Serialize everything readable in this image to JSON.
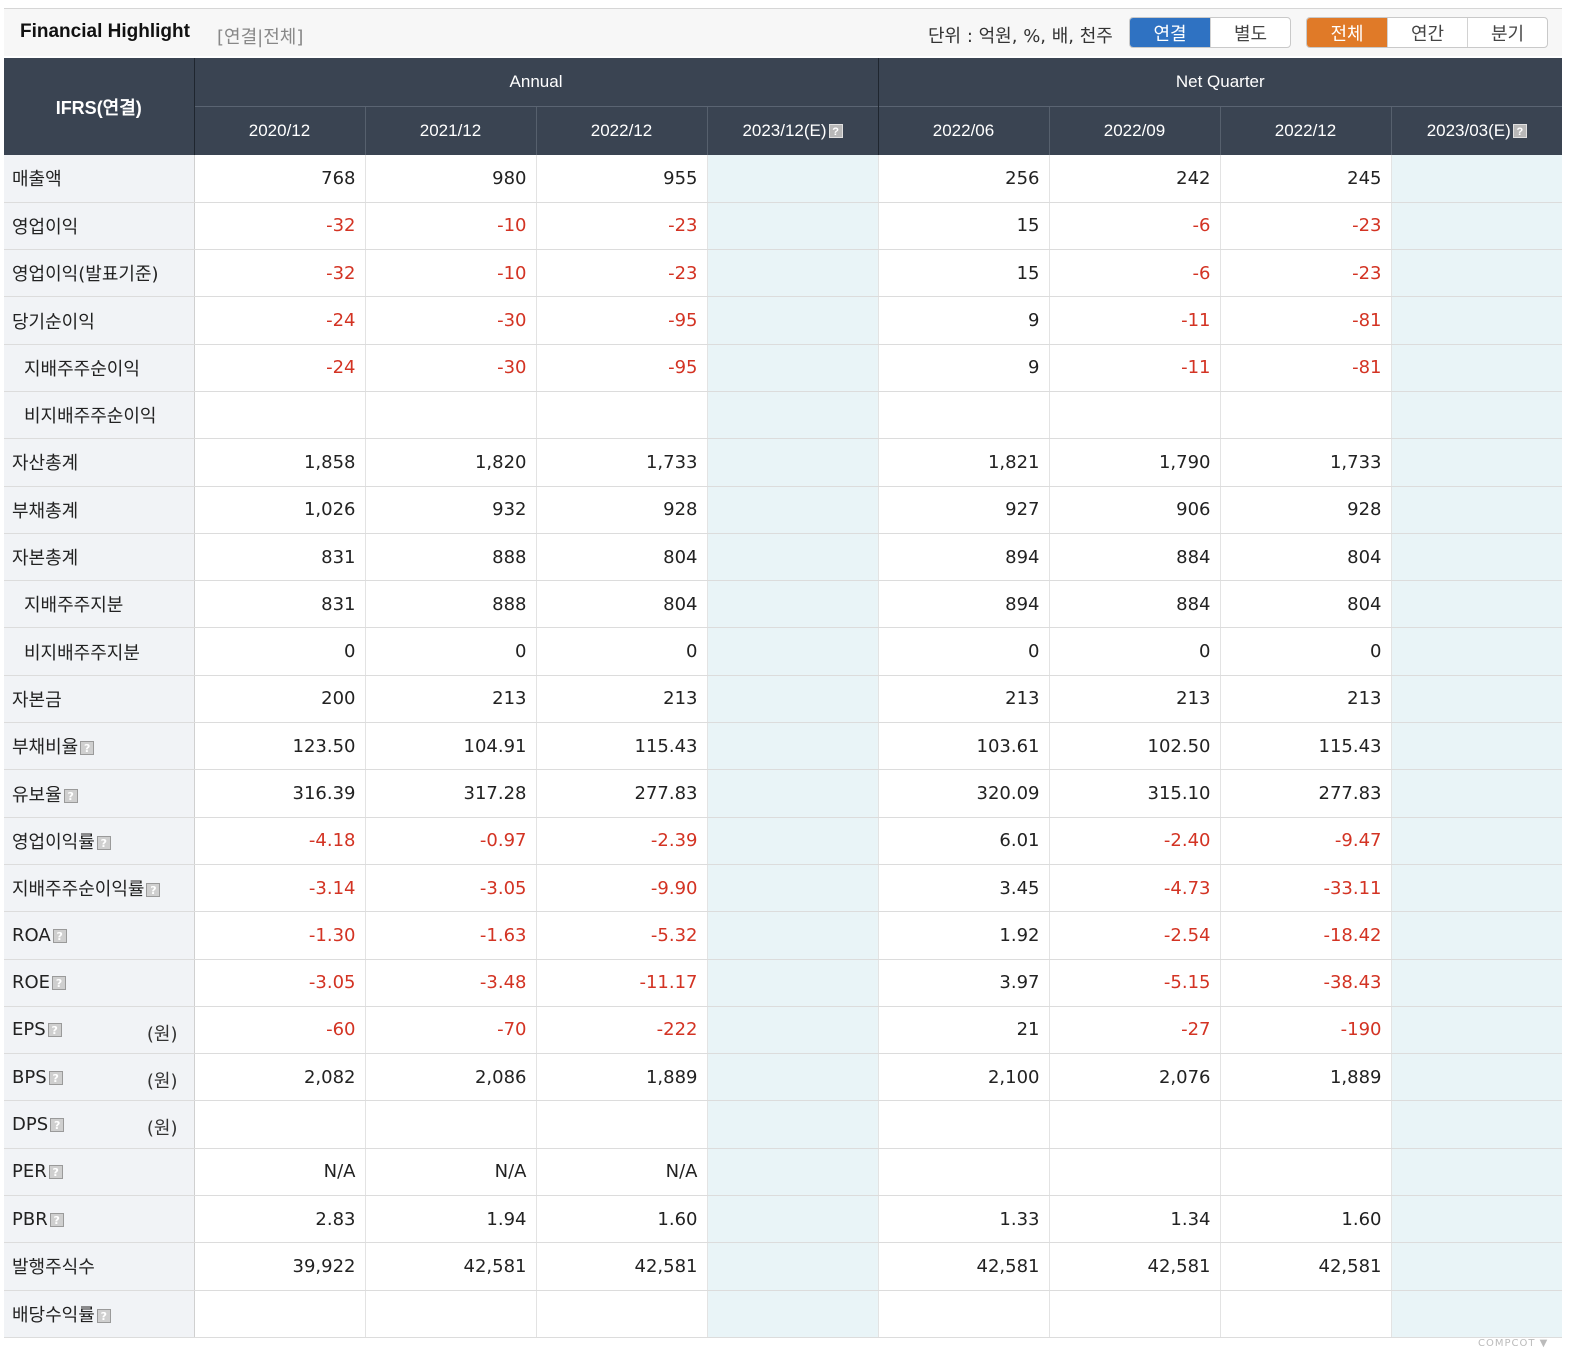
{
  "header": {
    "title": "Financial Highlight",
    "subtitle": "[연결|전체]",
    "unit_label": "단위 : 억원, %, 배, 천주",
    "scope_toggle": [
      "연결",
      "별도"
    ],
    "scope_selected": 0,
    "period_toggle": [
      "전체",
      "연간",
      "분기"
    ],
    "period_selected": 0
  },
  "colors": {
    "header_bg": "#3a4452",
    "negative": "#d33323",
    "scope_active": "#2f72c2",
    "period_active": "#e07a28",
    "estimate_bg": "#e9f4f7"
  },
  "table": {
    "stub_header": "IFRS(연결)",
    "groups": [
      "Annual",
      "Net Quarter"
    ],
    "columns": [
      "2020/12",
      "2021/12",
      "2022/12",
      "2023/12(E)",
      "2022/06",
      "2022/09",
      "2022/12",
      "2023/03(E)"
    ],
    "rows": [
      {
        "label": "매출액",
        "values": [
          "768",
          "980",
          "955",
          "",
          "256",
          "242",
          "245",
          ""
        ]
      },
      {
        "label": "영업이익",
        "values": [
          "-32",
          "-10",
          "-23",
          "",
          "15",
          "-6",
          "-23",
          ""
        ]
      },
      {
        "label": "영업이익(발표기준)",
        "values": [
          "-32",
          "-10",
          "-23",
          "",
          "15",
          "-6",
          "-23",
          ""
        ]
      },
      {
        "label": "당기순이익",
        "values": [
          "-24",
          "-30",
          "-95",
          "",
          "9",
          "-11",
          "-81",
          ""
        ]
      },
      {
        "label": "지배주주순이익",
        "indent": true,
        "values": [
          "-24",
          "-30",
          "-95",
          "",
          "9",
          "-11",
          "-81",
          ""
        ]
      },
      {
        "label": "비지배주주순이익",
        "indent": true,
        "values": [
          "",
          "",
          "",
          "",
          "",
          "",
          "",
          ""
        ]
      },
      {
        "label": "자산총계",
        "values": [
          "1,858",
          "1,820",
          "1,733",
          "",
          "1,821",
          "1,790",
          "1,733",
          ""
        ]
      },
      {
        "label": "부채총계",
        "values": [
          "1,026",
          "932",
          "928",
          "",
          "927",
          "906",
          "928",
          ""
        ]
      },
      {
        "label": "자본총계",
        "values": [
          "831",
          "888",
          "804",
          "",
          "894",
          "884",
          "804",
          ""
        ]
      },
      {
        "label": "지배주주지분",
        "indent": true,
        "values": [
          "831",
          "888",
          "804",
          "",
          "894",
          "884",
          "804",
          ""
        ]
      },
      {
        "label": "비지배주주지분",
        "indent": true,
        "values": [
          "0",
          "0",
          "0",
          "",
          "0",
          "0",
          "0",
          ""
        ]
      },
      {
        "label": "자본금",
        "values": [
          "200",
          "213",
          "213",
          "",
          "213",
          "213",
          "213",
          ""
        ]
      },
      {
        "label": "부채비율",
        "help": true,
        "values": [
          "123.50",
          "104.91",
          "115.43",
          "",
          "103.61",
          "102.50",
          "115.43",
          ""
        ]
      },
      {
        "label": "유보율",
        "help": true,
        "values": [
          "316.39",
          "317.28",
          "277.83",
          "",
          "320.09",
          "315.10",
          "277.83",
          ""
        ]
      },
      {
        "label": "영업이익률",
        "help": true,
        "values": [
          "-4.18",
          "-0.97",
          "-2.39",
          "",
          "6.01",
          "-2.40",
          "-9.47",
          ""
        ]
      },
      {
        "label": "지배주주순이익률",
        "help": true,
        "values": [
          "-3.14",
          "-3.05",
          "-9.90",
          "",
          "3.45",
          "-4.73",
          "-33.11",
          ""
        ]
      },
      {
        "label": "ROA",
        "help": true,
        "values": [
          "-1.30",
          "-1.63",
          "-5.32",
          "",
          "1.92",
          "-2.54",
          "-18.42",
          ""
        ]
      },
      {
        "label": "ROE",
        "help": true,
        "values": [
          "-3.05",
          "-3.48",
          "-11.17",
          "",
          "3.97",
          "-5.15",
          "-38.43",
          ""
        ]
      },
      {
        "label": "EPS",
        "help": true,
        "unit": "(원)",
        "values": [
          "-60",
          "-70",
          "-222",
          "",
          "21",
          "-27",
          "-190",
          ""
        ]
      },
      {
        "label": "BPS",
        "help": true,
        "unit": "(원)",
        "values": [
          "2,082",
          "2,086",
          "1,889",
          "",
          "2,100",
          "2,076",
          "1,889",
          ""
        ]
      },
      {
        "label": "DPS",
        "help": true,
        "unit": "(원)",
        "values": [
          "",
          "",
          "",
          "",
          "",
          "",
          "",
          ""
        ]
      },
      {
        "label": "PER",
        "help": true,
        "values": [
          "N/A",
          "N/A",
          "N/A",
          "",
          "",
          "",
          "",
          ""
        ]
      },
      {
        "label": "PBR",
        "help": true,
        "values": [
          "2.83",
          "1.94",
          "1.60",
          "",
          "1.33",
          "1.34",
          "1.60",
          ""
        ]
      },
      {
        "label": "발행주식수",
        "values": [
          "39,922",
          "42,581",
          "42,581",
          "",
          "42,581",
          "42,581",
          "42,581",
          ""
        ]
      },
      {
        "label": "배당수익률",
        "help": true,
        "values": [
          "",
          "",
          "",
          "",
          "",
          "",
          "",
          ""
        ]
      }
    ]
  },
  "footer": {
    "mark": "COMPCOT ▼"
  }
}
